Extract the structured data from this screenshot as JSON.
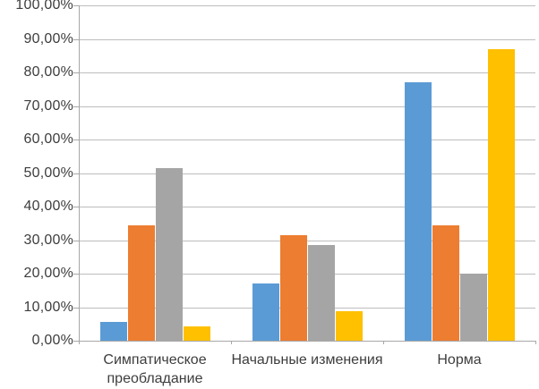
{
  "chart": {
    "background_color": "#FFFFFF",
    "text_color": "#3D3D3D",
    "gridline_color": "#BDBDBD",
    "axis_color": "#A8A8A8"
  },
  "chart_data": {
    "type": "bar",
    "title": "",
    "xlabel": "",
    "ylabel": "",
    "categories": [
      "Симпатическое преобладание",
      "Начальные изменения",
      "Норма"
    ],
    "series": [
      {
        "name": "series-blue",
        "color": "#5B9BD5",
        "values": [
          5.71,
          17.14,
          77.14
        ]
      },
      {
        "name": "series-orange",
        "color": "#ED7D31",
        "values": [
          34.29,
          31.43,
          34.29
        ]
      },
      {
        "name": "series-gray",
        "color": "#A5A5A5",
        "values": [
          51.43,
          28.57,
          20.0
        ]
      },
      {
        "name": "series-yellow",
        "color": "#FFC000",
        "values": [
          4.35,
          8.7,
          86.96
        ]
      }
    ],
    "y_ticks": [
      "0,00%",
      "10,00%",
      "20,00%",
      "30,00%",
      "40,00%",
      "50,00%",
      "60,00%",
      "70,00%",
      "80,00%",
      "90,00%",
      "100,00%"
    ],
    "ylim": [
      0,
      100
    ],
    "grid": true,
    "legend": false,
    "value_format": "percent-comma-decimal"
  }
}
